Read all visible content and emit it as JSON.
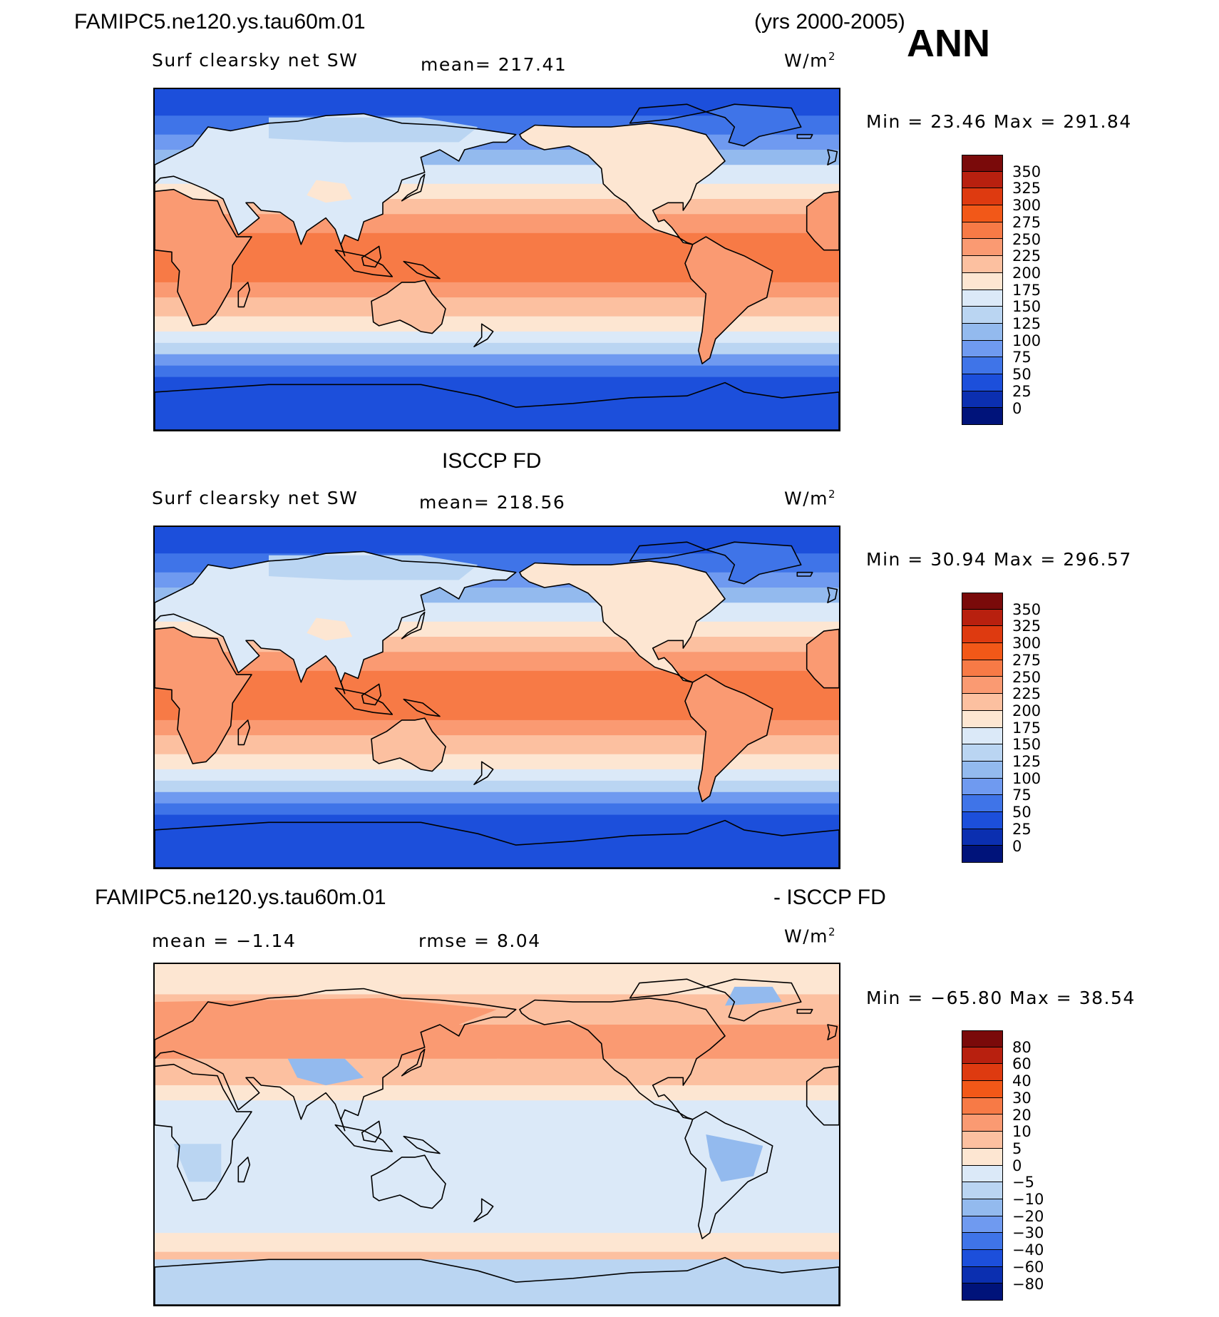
{
  "header": {
    "case": "FAMIPC5.ne120.ys.tau60m.01",
    "years": "(yrs 2000-2005)",
    "season": "ANN"
  },
  "panels": [
    {
      "title": "",
      "variable": "Surf clearsky net SW",
      "mean": "mean= 217.41",
      "units": "W/m",
      "units_exp": "2",
      "minmax": "Min =   23.46 Max = 291.84"
    },
    {
      "title": "ISCCP FD",
      "variable": "Surf clearsky net SW",
      "mean": "mean= 218.56",
      "units": "W/m",
      "units_exp": "2",
      "minmax": "Min =   30.94 Max = 296.57"
    },
    {
      "title_left": "FAMIPC5.ne120.ys.tau60m.01",
      "title_right": "- ISCCP FD",
      "mean": "mean =  −1.14",
      "rmse": "rmse =    8.04",
      "units": "W/m",
      "units_exp": "2",
      "minmax": "Min = −65.80 Max =   38.54"
    }
  ],
  "chart_data": [
    {
      "type": "heatmap",
      "title": "FAMIPC5.ne120.ys.tau60m.01 Surf clearsky net SW (yrs 2000-2005) ANN",
      "units": "W/m^2",
      "mean": 217.41,
      "min": 23.46,
      "max": 291.84,
      "legend_levels": [
        350,
        325,
        300,
        275,
        250,
        225,
        200,
        175,
        150,
        125,
        100,
        75,
        50,
        25,
        0
      ],
      "legend_labels": [
        "350",
        "325",
        "300",
        "275",
        "250",
        "225",
        "200",
        "175",
        "150",
        "125",
        "100",
        "75",
        "50",
        "25",
        "0"
      ],
      "colors": [
        "#7a0a0a",
        "#b8200f",
        "#de3a10",
        "#f25818",
        "#f77a46",
        "#fa9a72",
        "#fcc0a0",
        "#fde6d2",
        "#dbe9f8",
        "#bad5f2",
        "#93baee",
        "#6f9af0",
        "#3f74e8",
        "#1c4fdb",
        "#0b2fb0",
        "#00137a"
      ]
    },
    {
      "type": "heatmap",
      "title": "ISCCP FD Surf clearsky net SW",
      "units": "W/m^2",
      "mean": 218.56,
      "min": 30.94,
      "max": 296.57,
      "legend_levels": [
        350,
        325,
        300,
        275,
        250,
        225,
        200,
        175,
        150,
        125,
        100,
        75,
        50,
        25,
        0
      ],
      "legend_labels": [
        "350",
        "325",
        "300",
        "275",
        "250",
        "225",
        "200",
        "175",
        "150",
        "125",
        "100",
        "75",
        "50",
        "25",
        "0"
      ],
      "colors": [
        "#7a0a0a",
        "#b8200f",
        "#de3a10",
        "#f25818",
        "#f77a46",
        "#fa9a72",
        "#fcc0a0",
        "#fde6d2",
        "#dbe9f8",
        "#bad5f2",
        "#93baee",
        "#6f9af0",
        "#3f74e8",
        "#1c4fdb",
        "#0b2fb0",
        "#00137a"
      ]
    },
    {
      "type": "heatmap",
      "title": "FAMIPC5.ne120.ys.tau60m.01 - ISCCP FD",
      "units": "W/m^2",
      "mean": -1.14,
      "rmse": 8.04,
      "min": -65.8,
      "max": 38.54,
      "legend_levels": [
        80,
        60,
        40,
        30,
        20,
        10,
        5,
        0,
        -5,
        -10,
        -20,
        -30,
        -40,
        -60,
        -80
      ],
      "legend_labels": [
        "80",
        "60",
        "40",
        "30",
        "20",
        "10",
        "5",
        "0",
        "−5",
        "−10",
        "−20",
        "−30",
        "−40",
        "−60",
        "−80"
      ],
      "colors": [
        "#7a0a0a",
        "#b8200f",
        "#de3a10",
        "#f25818",
        "#f77a46",
        "#fa9a72",
        "#fcc0a0",
        "#fde6d2",
        "#dbe9f8",
        "#bad5f2",
        "#93baee",
        "#6f9af0",
        "#3f74e8",
        "#1c4fdb",
        "#0b2fb0",
        "#00137a"
      ]
    }
  ]
}
